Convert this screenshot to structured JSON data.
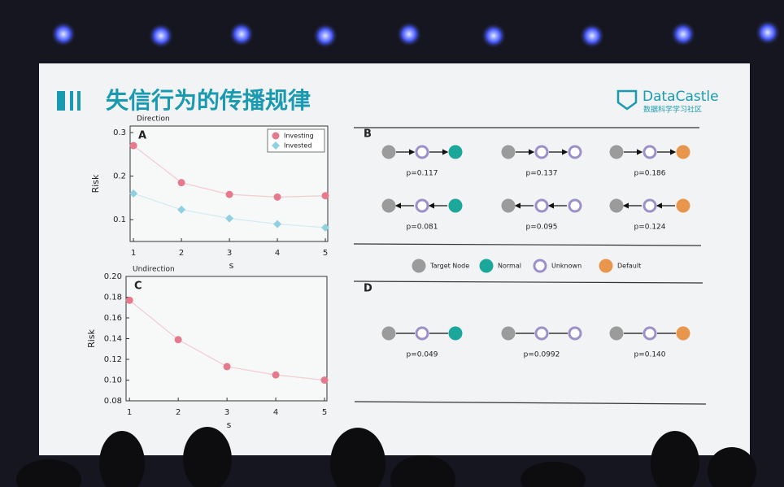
{
  "slide": {
    "title": "失信行为的传播规律",
    "logo": "DataCastle",
    "logo_sub": "数据科学学习社区"
  },
  "chart_data": [
    {
      "type": "line",
      "panel": "A",
      "title": "Direction",
      "x_label": "s",
      "y_label": "Risk",
      "x": [
        1,
        2,
        3,
        4,
        5
      ],
      "xlim": [
        0.93,
        5.05
      ],
      "xticks": [
        1,
        2,
        3,
        4,
        5
      ],
      "ylim": [
        0.05,
        0.315
      ],
      "yticks": [
        0.1,
        0.2,
        0.3
      ],
      "legend": "upper right",
      "series": [
        {
          "name": "Investing",
          "color": "#e57a8c",
          "marker": "circle",
          "values": [
            0.27,
            0.185,
            0.158,
            0.152,
            0.155
          ]
        },
        {
          "name": "Invested",
          "color": "#8fd0e2",
          "marker": "diamond",
          "values": [
            0.16,
            0.123,
            0.103,
            0.09,
            0.082
          ]
        }
      ]
    },
    {
      "type": "line",
      "panel": "C",
      "title": "Undirection",
      "x_label": "s",
      "y_label": "Risk",
      "x": [
        1,
        2,
        3,
        4,
        5
      ],
      "xlim": [
        0.93,
        5.05
      ],
      "xticks": [
        1,
        2,
        3,
        4,
        5
      ],
      "ylim": [
        0.08,
        0.2
      ],
      "yticks": [
        0.08,
        {
          "value": 0.1,
          "label": "0.10"
        },
        0.12,
        0.14,
        0.16,
        0.18,
        {
          "value": 0.2,
          "label": "0.20"
        }
      ],
      "series": [
        {
          "color": "#e57a8c",
          "marker": "circle",
          "values": [
            0.177,
            0.139,
            0.113,
            0.105,
            0.1
          ]
        }
      ]
    }
  ],
  "legend": [
    {
      "name": "Target Node",
      "color": "#9b9b9b",
      "style": "filled"
    },
    {
      "name": "Normal",
      "color": "#1ba79a",
      "style": "filled"
    },
    {
      "name": "Unknown",
      "color": "#9d90c9",
      "style": "ring"
    },
    {
      "name": "Default",
      "color": "#e8964b",
      "style": "filled"
    }
  ],
  "diagrams": [
    {
      "panel": "B",
      "rows": [
        {
          "link": "forward",
          "chains": [
            {
              "nodes": [
                0,
                2,
                1
              ],
              "label": "p=0.117"
            },
            {
              "nodes": [
                0,
                2,
                2
              ],
              "label": "p=0.137"
            },
            {
              "nodes": [
                0,
                2,
                3
              ],
              "label": "p=0.186"
            }
          ]
        },
        {
          "link": "backward",
          "chains": [
            {
              "nodes": [
                0,
                2,
                1
              ],
              "label": "p=0.081"
            },
            {
              "nodes": [
                0,
                2,
                2
              ],
              "label": "p=0.095"
            },
            {
              "nodes": [
                0,
                2,
                3
              ],
              "label": "p=0.124"
            }
          ]
        }
      ]
    },
    {
      "panel": "D",
      "rows": [
        {
          "link": "none",
          "chains": [
            {
              "nodes": [
                0,
                2,
                1
              ],
              "label": "p=0.049"
            },
            {
              "nodes": [
                0,
                2,
                2
              ],
              "label": "p=0.0992"
            },
            {
              "nodes": [
                0,
                2,
                3
              ],
              "label": "p=0.140"
            }
          ]
        }
      ]
    }
  ]
}
